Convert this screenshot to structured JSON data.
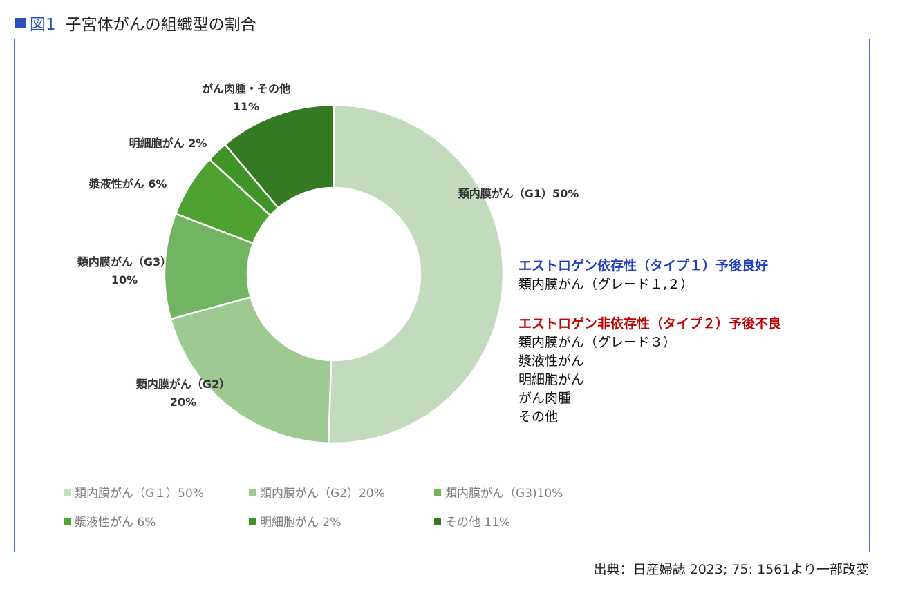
{
  "figure": {
    "title_label": "図1",
    "title": "子宮体がんの組織型の割合",
    "source": "出典：日産婦誌 2023; 75: 1561より一部改変"
  },
  "colors": {
    "title_label": "#2b4fbf",
    "frame_border": "#4a72c4",
    "type1_heading": "#1f3fbf",
    "type2_heading": "#c00000",
    "slices": [
      "#c2dbbd",
      "#9fc993",
      "#71b461",
      "#4fa232",
      "#3f9428",
      "#347a22"
    ]
  },
  "chart_data": {
    "type": "pie",
    "variant": "donut",
    "start_angle_deg": 0,
    "direction": "clockwise",
    "slices": [
      {
        "legend": "類内膜がん（G１）50%",
        "label_lines": [
          "類内膜がん（G1）50%"
        ],
        "value": 50,
        "color": "#c2dbbd"
      },
      {
        "legend": "類内膜がん（G2）20%",
        "label_lines": [
          "類内膜がん（G2）",
          "20%"
        ],
        "value": 20,
        "color": "#9fc993"
      },
      {
        "legend": "類内膜がん（G3)10%",
        "label_lines": [
          "類内膜がん（G3）",
          "10%"
        ],
        "value": 10,
        "color": "#71b461"
      },
      {
        "legend": "漿液性がん 6%",
        "label_lines": [
          "漿液性がん 6%"
        ],
        "value": 6,
        "color": "#4fa232"
      },
      {
        "legend": "明細胞がん 2%",
        "label_lines": [
          "明細胞がん 2%"
        ],
        "value": 2,
        "color": "#3f9428"
      },
      {
        "legend": "その他 11%",
        "label_lines": [
          "がん肉腫・その他",
          "11%"
        ],
        "value": 11,
        "color": "#347a22"
      }
    ],
    "legend_position": "bottom"
  },
  "annotation": {
    "type1": {
      "heading": "エストロゲン依存性（タイプ１）予後良好",
      "items": [
        "類内膜がん（グレード１,２）"
      ]
    },
    "type2": {
      "heading": "エストロゲン非依存性（タイプ２）予後不良",
      "items": [
        "類内膜がん（グレード３）",
        "漿液性がん",
        "明細胞がん",
        "がん肉腫",
        "その他"
      ]
    }
  }
}
